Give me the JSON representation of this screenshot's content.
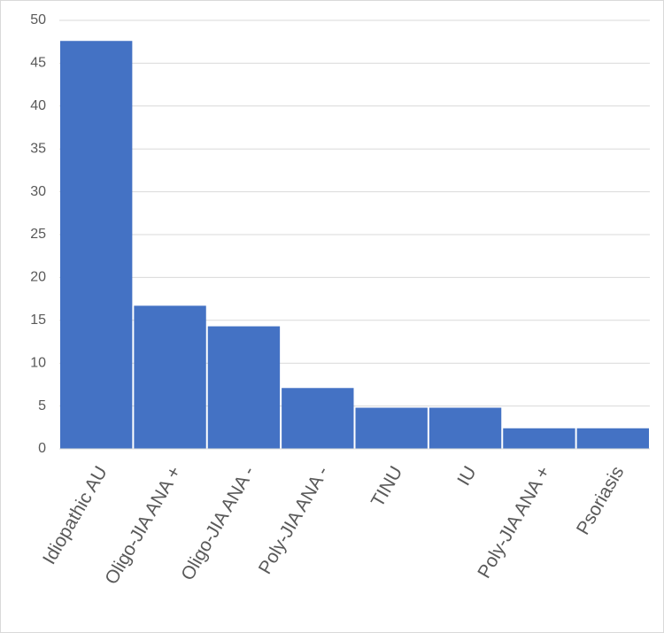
{
  "chart_data": {
    "type": "bar",
    "categories": [
      "Idiopathic AU",
      "Oligo-JIA ANA +",
      "Oligo-JIA ANA -",
      "Poly-JIA ANA -",
      "TINU",
      "IU",
      "Poly-JIA ANA +",
      "Psoriasis"
    ],
    "values": [
      47.6,
      16.7,
      14.3,
      7.1,
      4.8,
      4.8,
      2.4,
      2.4
    ],
    "color": "#4472c4",
    "ylim": [
      0,
      50
    ],
    "yticks": [
      0,
      5,
      10,
      15,
      20,
      25,
      30,
      35,
      40,
      45,
      50
    ],
    "grid": true
  }
}
